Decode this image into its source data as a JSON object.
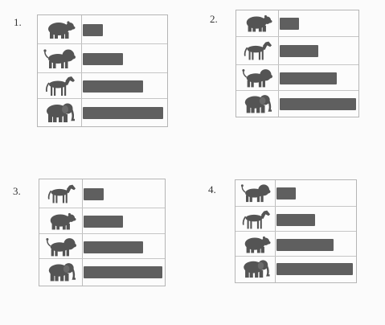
{
  "colors": {
    "bar": "#5f5f5f",
    "icon": "#545454",
    "line": "#bdbdbd"
  },
  "panels": [
    {
      "label": "1.",
      "rows": [
        {
          "animal": "bear-icon",
          "level": 1
        },
        {
          "animal": "lion-icon",
          "level": 2
        },
        {
          "animal": "horse-icon",
          "level": 3
        },
        {
          "animal": "elephant-icon",
          "level": 4
        }
      ]
    },
    {
      "label": "2.",
      "rows": [
        {
          "animal": "bear-icon",
          "level": 1
        },
        {
          "animal": "horse-icon",
          "level": 2
        },
        {
          "animal": "lion-icon",
          "level": 3
        },
        {
          "animal": "elephant-icon",
          "level": 4
        }
      ]
    },
    {
      "label": "3.",
      "rows": [
        {
          "animal": "horse-icon",
          "level": 1
        },
        {
          "animal": "bear-icon",
          "level": 2
        },
        {
          "animal": "lion-icon",
          "level": 3
        },
        {
          "animal": "elephant-icon",
          "level": 4
        }
      ]
    },
    {
      "label": "4.",
      "rows": [
        {
          "animal": "lion-icon",
          "level": 1
        },
        {
          "animal": "horse-icon",
          "level": 2
        },
        {
          "animal": "bear-icon",
          "level": 3
        },
        {
          "animal": "elephant-icon",
          "level": 4
        }
      ]
    }
  ]
}
